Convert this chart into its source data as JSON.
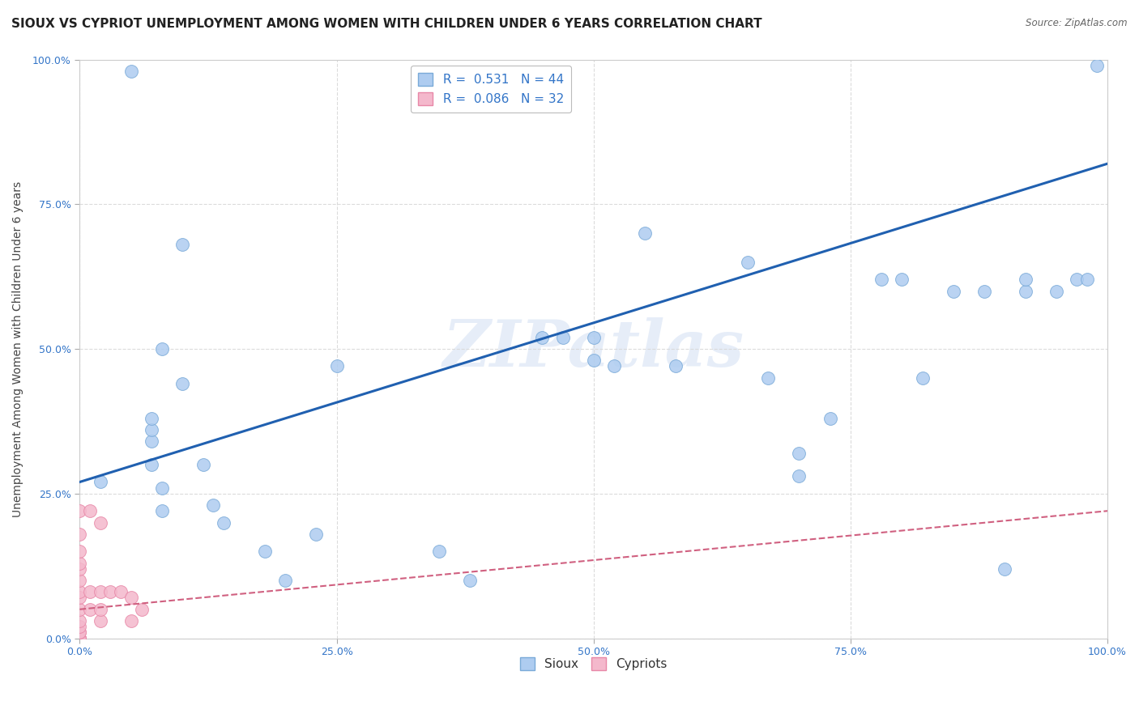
{
  "title": "SIOUX VS CYPRIOT UNEMPLOYMENT AMONG WOMEN WITH CHILDREN UNDER 6 YEARS CORRELATION CHART",
  "source": "Source: ZipAtlas.com",
  "ylabel": "Unemployment Among Women with Children Under 6 years",
  "xlabel_sioux": "Sioux",
  "xlabel_cypriot": "Cypriots",
  "watermark": "ZIPatlas",
  "xlim": [
    0.0,
    1.0
  ],
  "ylim": [
    0.0,
    1.0
  ],
  "xticks": [
    0.0,
    0.25,
    0.5,
    0.75,
    1.0
  ],
  "xtick_labels": [
    "0.0%",
    "25.0%",
    "50.0%",
    "75.0%",
    "100.0%"
  ],
  "yticks": [
    0.0,
    0.25,
    0.5,
    0.75,
    1.0
  ],
  "ytick_labels": [
    "0.0%",
    "25.0%",
    "50.0%",
    "75.0%",
    "100.0%"
  ],
  "sioux_R": 0.531,
  "sioux_N": 44,
  "cypriot_R": 0.086,
  "cypriot_N": 32,
  "sioux_color": "#aeccf0",
  "sioux_edge_color": "#7aaad8",
  "cypriot_color": "#f4b8cc",
  "cypriot_edge_color": "#e888a8",
  "trendline_sioux_color": "#2060b0",
  "trendline_cypriot_color": "#d06080",
  "sioux_points_x": [
    0.02,
    0.05,
    0.07,
    0.07,
    0.07,
    0.07,
    0.08,
    0.08,
    0.08,
    0.1,
    0.1,
    0.12,
    0.13,
    0.14,
    0.18,
    0.2,
    0.23,
    0.25,
    0.35,
    0.38,
    0.45,
    0.47,
    0.5,
    0.5,
    0.52,
    0.55,
    0.58,
    0.65,
    0.67,
    0.7,
    0.7,
    0.73,
    0.78,
    0.8,
    0.82,
    0.85,
    0.88,
    0.9,
    0.92,
    0.92,
    0.95,
    0.97,
    0.98,
    0.99
  ],
  "sioux_points_y": [
    0.27,
    0.98,
    0.3,
    0.34,
    0.36,
    0.38,
    0.22,
    0.26,
    0.5,
    0.44,
    0.68,
    0.3,
    0.23,
    0.2,
    0.15,
    0.1,
    0.18,
    0.47,
    0.15,
    0.1,
    0.52,
    0.52,
    0.48,
    0.52,
    0.47,
    0.7,
    0.47,
    0.65,
    0.45,
    0.28,
    0.32,
    0.38,
    0.62,
    0.62,
    0.45,
    0.6,
    0.6,
    0.12,
    0.6,
    0.62,
    0.6,
    0.62,
    0.62,
    0.99
  ],
  "cypriot_points_x": [
    0.0,
    0.0,
    0.0,
    0.0,
    0.0,
    0.0,
    0.0,
    0.0,
    0.0,
    0.0,
    0.0,
    0.0,
    0.0,
    0.0,
    0.0,
    0.0,
    0.0,
    0.0,
    0.0,
    0.0,
    0.01,
    0.01,
    0.01,
    0.02,
    0.02,
    0.02,
    0.02,
    0.03,
    0.04,
    0.05,
    0.05,
    0.06
  ],
  "cypriot_points_y": [
    0.0,
    0.0,
    0.0,
    0.0,
    0.0,
    0.0,
    0.0,
    0.01,
    0.01,
    0.02,
    0.03,
    0.05,
    0.07,
    0.08,
    0.1,
    0.12,
    0.13,
    0.15,
    0.18,
    0.22,
    0.05,
    0.08,
    0.22,
    0.03,
    0.05,
    0.08,
    0.2,
    0.08,
    0.08,
    0.03,
    0.07,
    0.05
  ],
  "background_color": "#ffffff",
  "grid_color": "#d8d8d8",
  "title_fontsize": 11,
  "axis_label_fontsize": 10,
  "tick_fontsize": 9,
  "legend_fontsize": 11,
  "marker_size": 130
}
